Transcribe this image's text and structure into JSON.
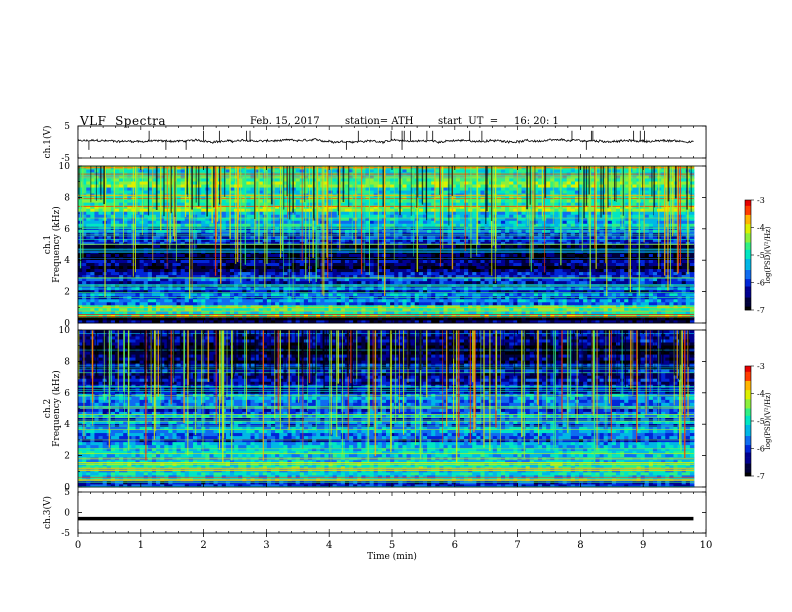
{
  "header": {
    "title": "VLF  Spectra",
    "date": "Feb. 15, 2017",
    "station": "station= ATH",
    "start_ut": "start  UT  =     16: 20: 1"
  },
  "colors": {
    "palette": [
      "#000000",
      "#00003a",
      "#000090",
      "#0026d8",
      "#0f6cf0",
      "#00b7e6",
      "#00e6c3",
      "#31f083",
      "#8cf03c",
      "#dcf000",
      "#ffb400",
      "#ff3c00",
      "#e60000"
    ],
    "trace": "#000000",
    "axis": "#000000"
  },
  "chart_data": [
    {
      "type": "line",
      "panel": "ch1",
      "ylabel": "ch.1(V)",
      "ylim": [
        -5,
        5
      ],
      "yticks": [
        "5",
        "-5"
      ],
      "xlim": [
        0,
        10
      ],
      "description_values": {
        "baseline_v": 0.3,
        "noise_v": 0.6,
        "spike_v": 3.5
      }
    },
    {
      "type": "heatmap",
      "panel": "ch1-spectrogram",
      "ylabel_top": "ch.1",
      "ylabel": "Frequency  (kHz)",
      "ylim": [
        0,
        10
      ],
      "yticks": [
        "0",
        "2",
        "4",
        "6",
        "8",
        "10"
      ],
      "xlim": [
        0,
        9.8
      ],
      "colorbar": {
        "label": "log(PSD)(V²/Hz)",
        "range": [
          -7,
          -3
        ],
        "ticks": [
          "-3",
          "-4",
          "-5",
          "-6",
          "-7"
        ]
      },
      "bands_khz_log_psd": [
        [
          0.0,
          0.3,
          -6.8
        ],
        [
          0.3,
          0.6,
          -4.2
        ],
        [
          0.6,
          1.2,
          -5.0
        ],
        [
          1.2,
          2.0,
          -5.6
        ],
        [
          2.0,
          3.2,
          -5.9
        ],
        [
          3.2,
          5.0,
          -6.6
        ],
        [
          5.0,
          6.2,
          -5.8
        ],
        [
          6.2,
          7.2,
          -5.1
        ],
        [
          7.2,
          10.0,
          -4.7
        ]
      ]
    },
    {
      "type": "heatmap",
      "panel": "ch2-spectrogram",
      "ylabel_top": "ch.2",
      "ylabel": "Frequency  (kHz)",
      "ylim": [
        0,
        10
      ],
      "yticks": [
        "0",
        "2",
        "4",
        "6",
        "8",
        "10"
      ],
      "xlim": [
        0,
        9.8
      ],
      "colorbar": {
        "label": "log(PSD)(V²/Hz)",
        "range": [
          -7,
          -3
        ],
        "ticks": [
          "-3",
          "-4",
          "-5",
          "-6",
          "-7"
        ]
      },
      "bands_khz_log_psd": [
        [
          0.0,
          0.4,
          -6.0
        ],
        [
          0.4,
          1.6,
          -4.9
        ],
        [
          1.6,
          2.6,
          -5.3
        ],
        [
          2.6,
          4.5,
          -5.7
        ],
        [
          4.5,
          6.0,
          -5.6
        ],
        [
          6.0,
          7.5,
          -6.2
        ],
        [
          7.5,
          10.0,
          -6.5
        ]
      ]
    },
    {
      "type": "line",
      "panel": "ch3",
      "ylabel": "ch.3(V)",
      "ylim": [
        -5,
        5
      ],
      "yticks": [
        "5",
        "0",
        "-5"
      ],
      "xlim": [
        0,
        10
      ],
      "xlabel": "Time  (min)",
      "xticks": [
        "0",
        "1",
        "2",
        "3",
        "4",
        "5",
        "6",
        "7",
        "8",
        "9",
        "10"
      ],
      "description_values": {
        "baseline_v": -1.5
      }
    }
  ]
}
